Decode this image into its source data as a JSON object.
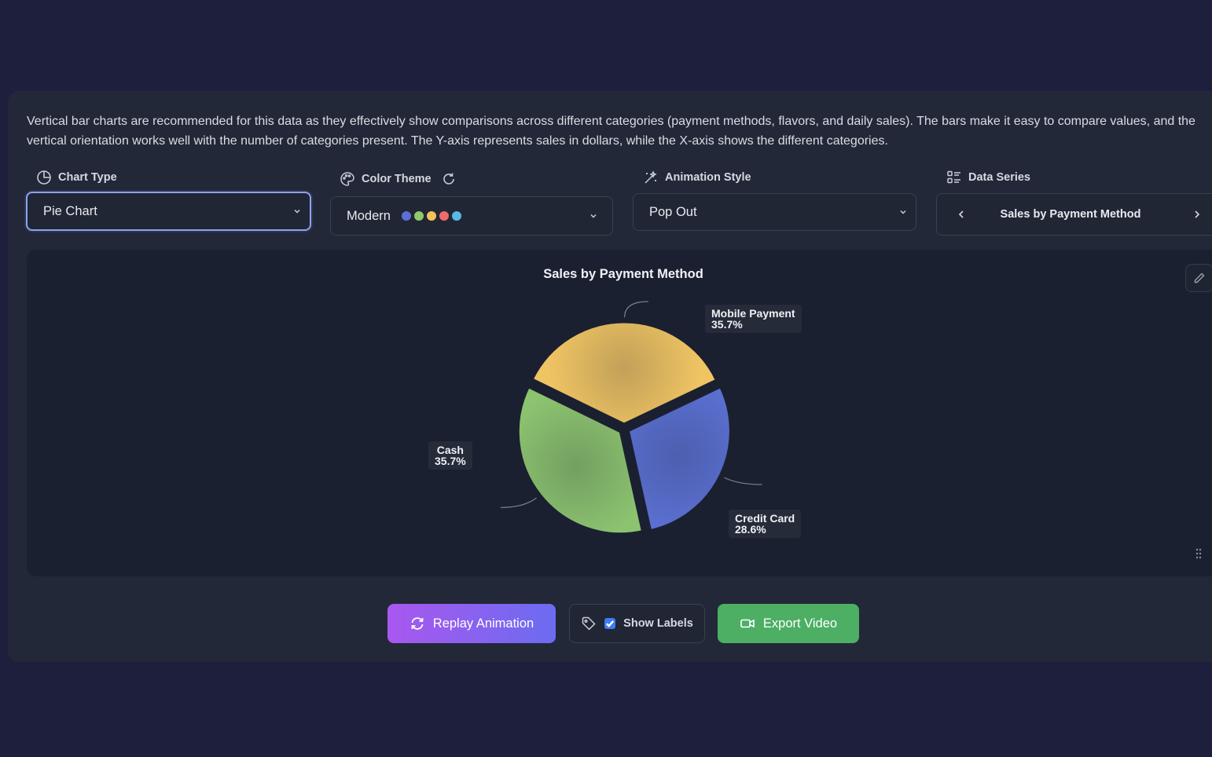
{
  "description": "Vertical bar charts are recommended for this data as they effectively show comparisons across different categories (payment methods, flavors, and daily sales). The bars make it easy to compare values, and the vertical orientation works well with the number of categories present. The Y-axis represents sales in dollars, while the X-axis shows the different categories.",
  "controls": {
    "chart_type": {
      "label": "Chart Type",
      "value": "Pie Chart"
    },
    "color_theme": {
      "label": "Color Theme",
      "value": "Modern",
      "swatches": [
        "#5b6fd6",
        "#8fc96a",
        "#f2c25a",
        "#ef6b6b",
        "#5bb7e3"
      ]
    },
    "animation_style": {
      "label": "Animation Style",
      "value": "Pop Out"
    },
    "data_series": {
      "label": "Data Series",
      "value": "Sales by Payment Method"
    }
  },
  "chart_data": {
    "type": "pie",
    "title": "Sales by Payment Method",
    "slices": [
      {
        "name": "Mobile Payment",
        "percent": "35.7%",
        "value": 35.7,
        "color": "#f0c463"
      },
      {
        "name": "Credit Card",
        "percent": "28.6%",
        "value": 28.6,
        "color": "#5b70d2"
      },
      {
        "name": "Cash",
        "percent": "35.7%",
        "value": 35.7,
        "color": "#8cc36f"
      }
    ]
  },
  "actions": {
    "replay": "Replay Animation",
    "show_labels": "Show Labels",
    "show_labels_checked": true,
    "export": "Export Video"
  }
}
